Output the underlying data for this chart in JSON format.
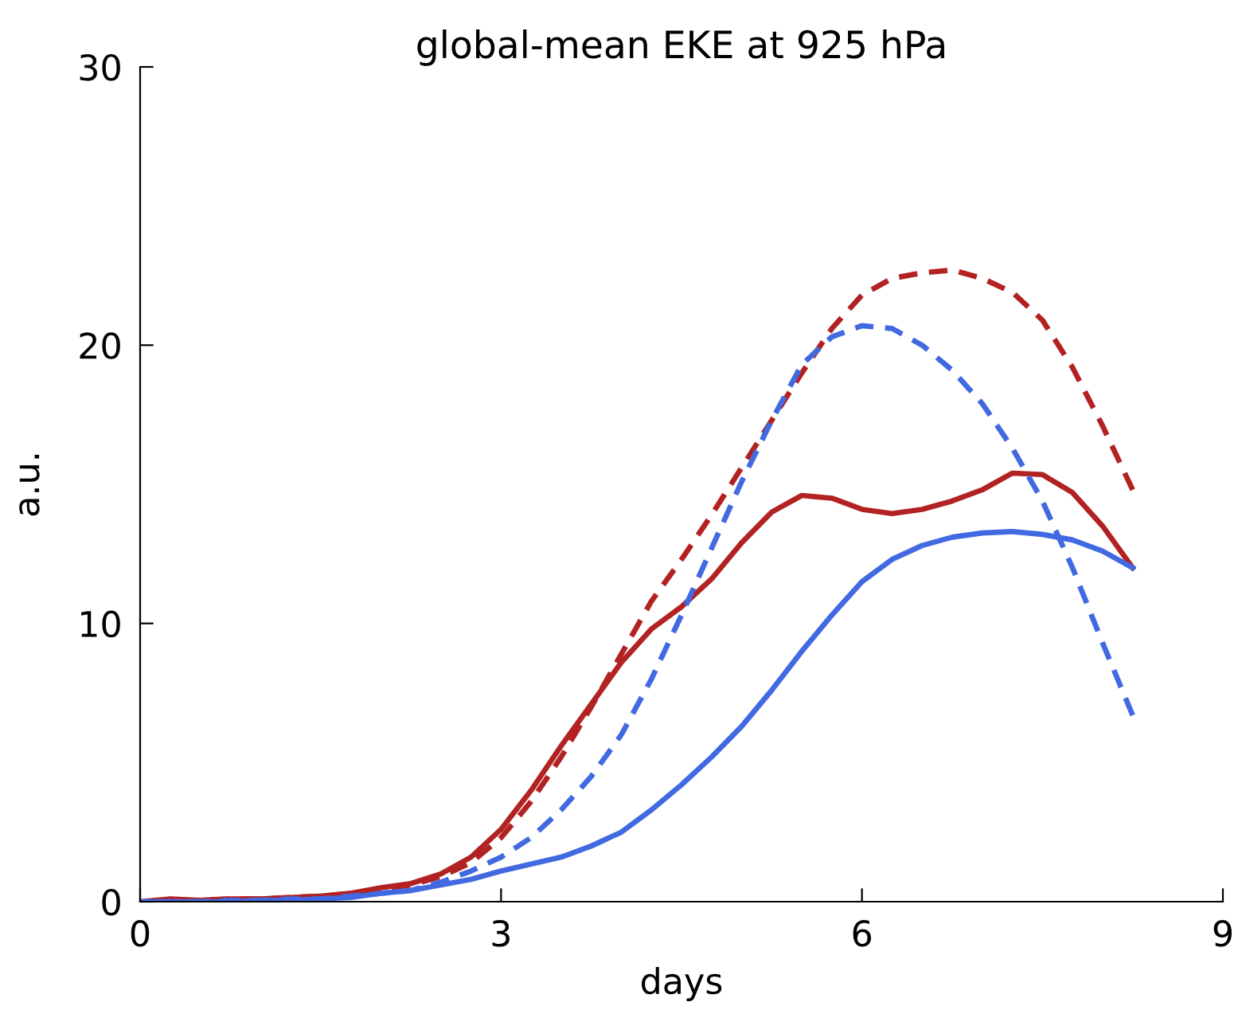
{
  "chart_data": {
    "type": "line",
    "title": "global-mean EKE at 925 hPa",
    "xlabel": "days",
    "ylabel": "a.u.",
    "x": [
      0,
      0.25,
      0.5,
      0.75,
      1,
      1.25,
      1.5,
      1.75,
      2,
      2.25,
      2.5,
      2.75,
      3,
      3.25,
      3.5,
      3.75,
      4,
      4.25,
      4.5,
      4.75,
      5,
      5.25,
      5.5,
      5.75,
      6,
      6.25,
      6.5,
      6.75,
      7,
      7.25,
      7.5,
      7.75,
      8,
      8.25
    ],
    "xlim": [
      0,
      9
    ],
    "xticks": [
      0,
      3,
      6,
      9
    ],
    "ylim": [
      0,
      30
    ],
    "yticks": [
      0,
      10,
      20,
      30
    ],
    "grid": false,
    "marker": "none",
    "series": [
      {
        "color": "#b22222",
        "line_style": "solid",
        "values": [
          0,
          0.1,
          0.05,
          0.1,
          0.1,
          0.15,
          0.2,
          0.3,
          0.5,
          0.65,
          1.0,
          1.6,
          2.6,
          4.0,
          5.6,
          7.1,
          8.6,
          9.8,
          10.6,
          11.6,
          12.9,
          14.0,
          14.6,
          14.5,
          14.1,
          13.95,
          14.1,
          14.4,
          14.8,
          15.4,
          15.35,
          14.7,
          13.5,
          12.0
        ]
      },
      {
        "color": "#b22222",
        "line_style": "dashed",
        "values": [
          0,
          0.05,
          0.05,
          0.1,
          0.1,
          0.15,
          0.2,
          0.3,
          0.45,
          0.6,
          0.9,
          1.4,
          2.3,
          3.6,
          5.2,
          7.0,
          8.9,
          10.8,
          12.3,
          13.9,
          15.6,
          17.3,
          19.0,
          20.6,
          21.8,
          22.4,
          22.6,
          22.7,
          22.4,
          21.9,
          20.9,
          19.2,
          17.1,
          14.8
        ]
      },
      {
        "color": "#4169e1",
        "line_style": "solid",
        "values": [
          0,
          0,
          0,
          0,
          0.05,
          0.05,
          0.1,
          0.15,
          0.3,
          0.4,
          0.6,
          0.8,
          1.1,
          1.35,
          1.6,
          2.0,
          2.5,
          3.3,
          4.2,
          5.2,
          6.3,
          7.6,
          9.0,
          10.3,
          11.5,
          12.3,
          12.8,
          13.1,
          13.25,
          13.3,
          13.2,
          13.0,
          12.6,
          12.0
        ]
      },
      {
        "color": "#4169e1",
        "line_style": "dashed",
        "values": [
          0,
          0,
          0,
          0.05,
          0.05,
          0.1,
          0.1,
          0.2,
          0.3,
          0.4,
          0.7,
          1.1,
          1.6,
          2.3,
          3.3,
          4.5,
          6.0,
          8.0,
          10.3,
          12.7,
          15.1,
          17.3,
          19.3,
          20.3,
          20.7,
          20.6,
          20.0,
          19.1,
          17.9,
          16.3,
          14.4,
          12.0,
          9.3,
          6.7
        ]
      }
    ]
  }
}
